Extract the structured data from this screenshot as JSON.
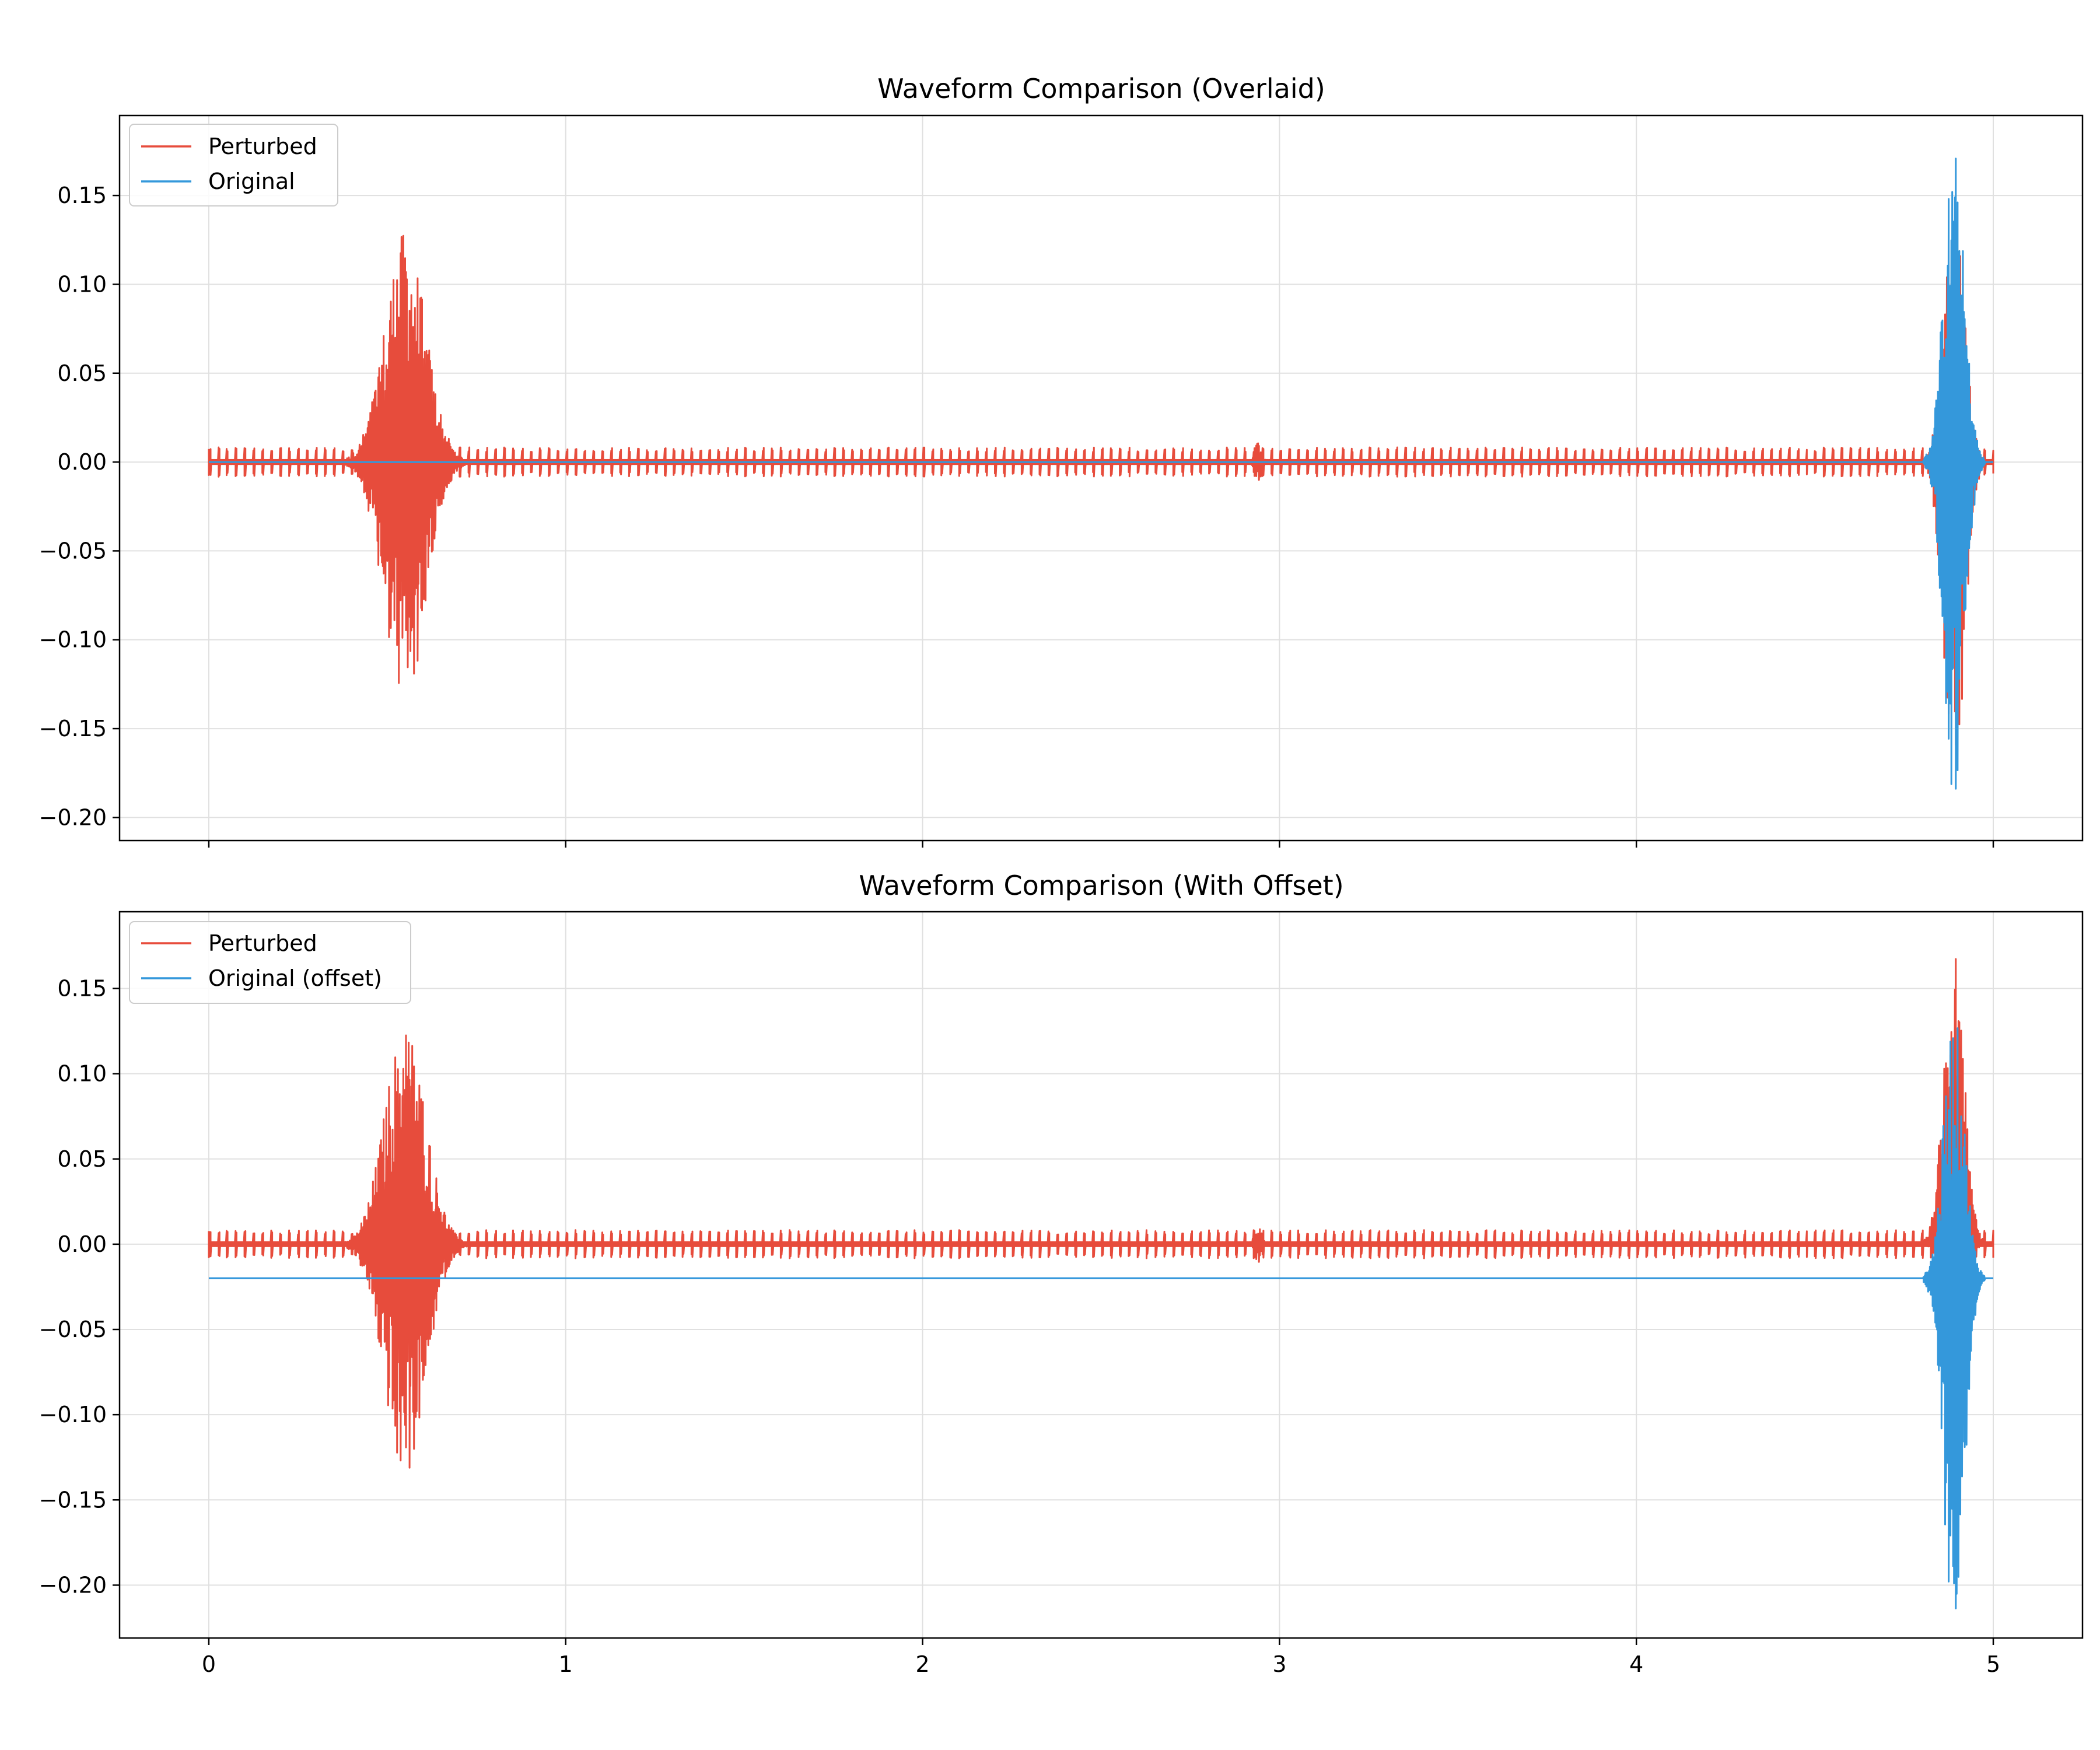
{
  "chart_data": [
    {
      "type": "line",
      "title": "Waveform Comparison (Overlaid)",
      "xlabel": "",
      "ylabel": "",
      "xlim": [
        -0.25,
        5.25
      ],
      "ylim": [
        -0.213,
        0.195
      ],
      "xticks": [
        0,
        1,
        2,
        3,
        4,
        5
      ],
      "xtick_labels": [
        "",
        "",
        "",
        "",
        "",
        ""
      ],
      "yticks": [
        -0.2,
        -0.15,
        -0.1,
        -0.05,
        0.0,
        0.05,
        0.1,
        0.15
      ],
      "ytick_labels": [
        "−0.20",
        "−0.15",
        "−0.10",
        "−0.05",
        "0.00",
        "0.05",
        "0.10",
        "0.15"
      ],
      "grid": true,
      "legend": "upper-left",
      "series": [
        {
          "name": "Perturbed",
          "color": "#e74c3c",
          "baseline": 0.0,
          "pulse_amplitude": 0.0075,
          "pulse_period": 0.025,
          "events": [
            {
              "center": 0.55,
              "width": 0.12,
              "peak": 0.13,
              "trough": -0.137
            },
            {
              "center": 2.94,
              "width": 0.02,
              "peak": 0.012,
              "trough": -0.012
            },
            {
              "center": 4.89,
              "width": 0.06,
              "peak": 0.148,
              "trough": -0.195
            }
          ],
          "x_range": [
            0,
            5
          ]
        },
        {
          "name": "Original",
          "color": "#3498db",
          "baseline": 0.0,
          "pulse_amplitude": 0.0,
          "pulse_period": 0.025,
          "events": [
            {
              "center": 4.89,
              "width": 0.06,
              "peak": 0.177,
              "trough": -0.192
            }
          ],
          "x_range": [
            0,
            5
          ]
        }
      ]
    },
    {
      "type": "line",
      "title": "Waveform Comparison (With Offset)",
      "xlabel": "",
      "ylabel": "",
      "xlim": [
        -0.25,
        5.25
      ],
      "ylim": [
        -0.231,
        0.195
      ],
      "xticks": [
        0,
        1,
        2,
        3,
        4,
        5
      ],
      "xtick_labels": [
        "0",
        "1",
        "2",
        "3",
        "4",
        "5"
      ],
      "yticks": [
        -0.2,
        -0.15,
        -0.1,
        -0.05,
        0.0,
        0.05,
        0.1,
        0.15
      ],
      "ytick_labels": [
        "−0.20",
        "−0.15",
        "−0.10",
        "−0.05",
        "0.00",
        "0.05",
        "0.10",
        "0.15"
      ],
      "grid": true,
      "legend": "upper-left",
      "series": [
        {
          "name": "Perturbed",
          "color": "#e74c3c",
          "baseline": 0.0,
          "pulse_amplitude": 0.0075,
          "pulse_period": 0.025,
          "events": [
            {
              "center": 0.55,
              "width": 0.12,
              "peak": 0.13,
              "trough": -0.137
            },
            {
              "center": 2.94,
              "width": 0.02,
              "peak": 0.012,
              "trough": -0.012
            },
            {
              "center": 4.89,
              "width": 0.06,
              "peak": 0.176,
              "trough": -0.04
            }
          ],
          "x_range": [
            0,
            5
          ]
        },
        {
          "name": "Original (offset)",
          "color": "#3498db",
          "baseline": -0.02,
          "pulse_amplitude": 0.0,
          "pulse_period": 0.025,
          "events": [
            {
              "center": 4.89,
              "width": 0.06,
              "peak": 0.157,
              "trough": -0.212
            }
          ],
          "x_range": [
            0,
            5
          ]
        }
      ]
    }
  ]
}
